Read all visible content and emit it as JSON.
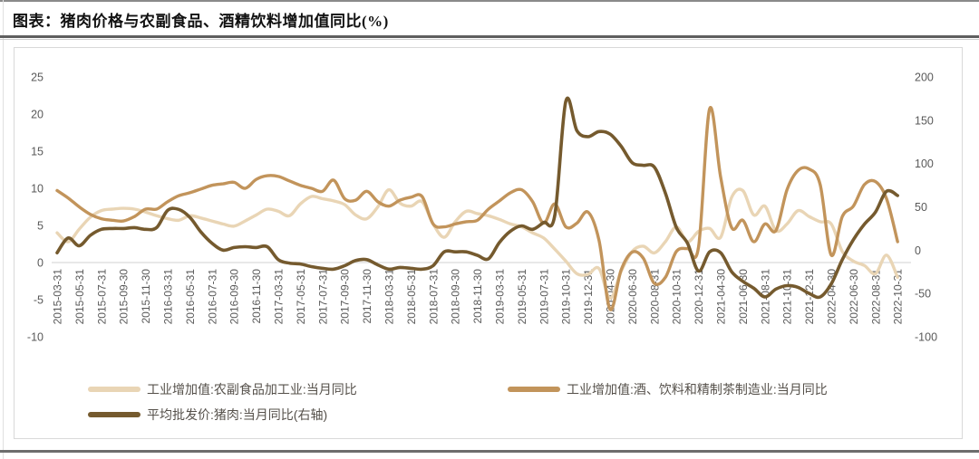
{
  "title": "图表：猪肉价格与农副食品、酒精饮料增加值同比(%)",
  "chart_data": {
    "type": "line",
    "title": "图表：猪肉价格与农副食品、酒精饮料增加值同比(%)",
    "grid": "zero-line-only",
    "grid_color": "#d9d9d9",
    "axis_text_color": "#595959",
    "left_axis": {
      "ticks": [
        25,
        20,
        15,
        10,
        5,
        0,
        -5,
        -10
      ],
      "range": [
        -10,
        25
      ]
    },
    "right_axis": {
      "ticks": [
        200,
        150,
        100,
        50,
        0,
        -50,
        -100
      ],
      "range": [
        -100,
        200
      ]
    },
    "x_labels": [
      "2015-03-31",
      "2015-05-31",
      "2015-07-31",
      "2015-09-30",
      "2015-11-30",
      "2016-03-31",
      "2016-05-31",
      "2016-07-31",
      "2016-09-30",
      "2016-11-30",
      "2017-03-31",
      "2017-05-31",
      "2017-07-31",
      "2017-09-30",
      "2017-11-30",
      "2018-03-31",
      "2018-05-31",
      "2018-07-31",
      "2018-09-30",
      "2018-11-30",
      "2019-03-31",
      "2019-05-31",
      "2019-07-31",
      "2019-10-31",
      "2019-12-31",
      "2020-04-30",
      "2020-06-30",
      "2020-08-31",
      "2020-10-31",
      "2020-12-31",
      "2021-04-30",
      "2021-06-30",
      "2021-08-31",
      "2021-10-31",
      "2021-12-31",
      "2022-04-30",
      "2022-06-30",
      "2022-08-31",
      "2022-10-31"
    ],
    "x_note": "labels shown every 2nd data point; 77 points total, monthly (Jan/Feb omitted)",
    "legend_position": "bottom-left, two rows",
    "legend": [
      {
        "label": "工业增加值:农副食品加工业:当月同比",
        "series": "nongfu"
      },
      {
        "label": "工业增加值:酒、饮料和精制茶制造业:当月同比",
        "series": "jiu"
      },
      {
        "label": "平均批发价:猪肉:当月同比(右轴)",
        "series": "zhurou"
      }
    ],
    "series": {
      "nongfu": {
        "name": "工业增加值:农副食品加工业:当月同比",
        "axis": "left",
        "color": "#e9d5b5",
        "width": 3.4,
        "values": [
          4.0,
          2.8,
          4.5,
          6.1,
          7.0,
          7.2,
          7.3,
          7.2,
          6.8,
          6.3,
          5.9,
          5.7,
          6.3,
          6.0,
          5.6,
          5.2,
          4.9,
          5.6,
          6.4,
          7.2,
          6.9,
          6.3,
          7.9,
          8.9,
          8.6,
          8.3,
          7.8,
          6.4,
          5.9,
          7.5,
          9.8,
          8.0,
          7.6,
          8.2,
          5.2,
          3.4,
          5.5,
          6.9,
          6.6,
          6.3,
          5.8,
          5.2,
          4.8,
          4.0,
          3.3,
          1.8,
          0.2,
          -1.5,
          -1.6,
          -0.8,
          -4.8,
          -1.2,
          1.5,
          2.2,
          1.3,
          2.8,
          4.8,
          2.8,
          4.2,
          4.6,
          3.4,
          8.8,
          9.7,
          6.4,
          7.6,
          4.3,
          5.2,
          7.0,
          6.2,
          5.5,
          5.2,
          1.5,
          0.2,
          -0.4,
          -1.5,
          1.0,
          -2.0
        ]
      },
      "jiu": {
        "name": "工业增加值:酒、饮料和精制茶制造业:当月同比",
        "axis": "left",
        "color": "#c2945b",
        "width": 3.4,
        "values": [
          9.7,
          8.7,
          7.5,
          6.5,
          5.9,
          5.7,
          5.6,
          6.2,
          7.2,
          7.2,
          8.2,
          9.0,
          9.4,
          9.9,
          10.4,
          10.6,
          10.8,
          10.0,
          11.2,
          11.7,
          11.6,
          11.0,
          10.4,
          10.0,
          9.6,
          11.1,
          8.6,
          8.4,
          9.6,
          8.2,
          7.6,
          8.4,
          8.8,
          8.9,
          5.2,
          4.8,
          5.2,
          5.5,
          5.7,
          7.2,
          8.3,
          9.4,
          9.8,
          8.2,
          5.3,
          7.9,
          4.8,
          5.3,
          6.8,
          3.0,
          -6.3,
          -1.0,
          1.4,
          0.6,
          -2.8,
          -2.0,
          1.5,
          1.9,
          2.1,
          20.7,
          11.5,
          4.7,
          5.7,
          2.8,
          5.2,
          4.3,
          9.8,
          12.4,
          12.6,
          10.5,
          1.0,
          6.2,
          7.6,
          10.5,
          10.9,
          8.6,
          2.8
        ]
      },
      "zhurou": {
        "name": "平均批发价:猪肉:当月同比(右轴)",
        "axis": "right",
        "color": "#755a2e",
        "width": 3.6,
        "values": [
          -3,
          14,
          5,
          17,
          24,
          25,
          25,
          26,
          24,
          26,
          46,
          47,
          38,
          21,
          8,
          0,
          3,
          4,
          3,
          4,
          -11,
          -15,
          -16,
          -19,
          -21,
          -22,
          -18,
          -12,
          -11,
          -17,
          -22,
          -20,
          -21,
          -22,
          -18,
          -2,
          -2,
          -2,
          -6,
          -10,
          9,
          22,
          28,
          24,
          32,
          40,
          172,
          138,
          131,
          137,
          134,
          120,
          101,
          98,
          96,
          66,
          26,
          8,
          -24,
          -2,
          -3,
          -25,
          -36,
          -44,
          -54,
          -45,
          -41,
          -43,
          -50,
          -54,
          -39,
          -11,
          12,
          30,
          44,
          68,
          63
        ]
      }
    }
  }
}
